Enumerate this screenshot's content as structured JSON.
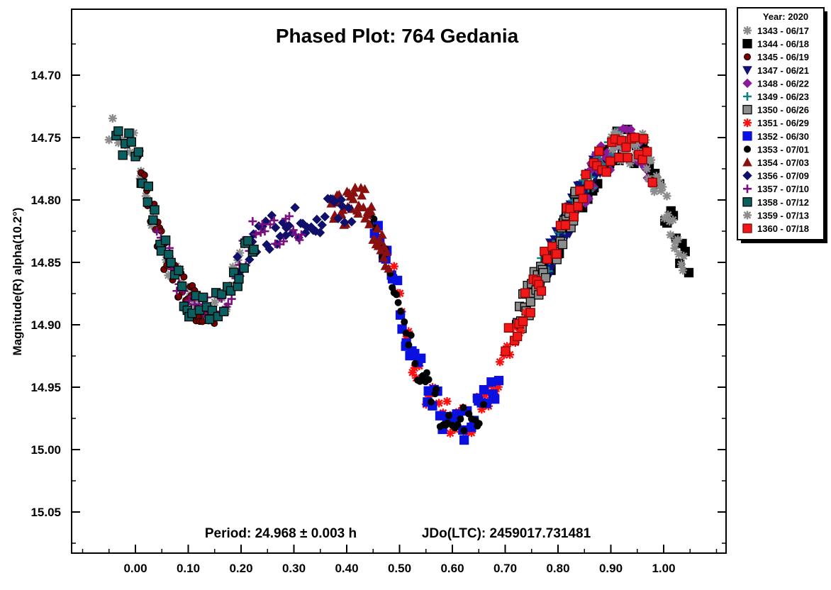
{
  "chart_data": {
    "type": "scatter",
    "title": "Phased Plot: 764 Gedania",
    "subtitle_period": "Period: 24.968 ± 0.003 h",
    "subtitle_epoch": "JDo(LTC): 2459017.731481",
    "xlabel": "",
    "ylabel": "Magnitude(R) alpha(10.2°)",
    "xlim": [
      -0.12,
      1.12
    ],
    "ylim": [
      14.665,
      15.085
    ],
    "y_inverted": true,
    "x_ticks": [
      "0.00",
      "0.10",
      "0.20",
      "0.30",
      "0.40",
      "0.50",
      "0.60",
      "0.70",
      "0.80",
      "0.90",
      "1.00"
    ],
    "y_ticks": [
      "14.70",
      "14.75",
      "14.80",
      "14.85",
      "14.90",
      "14.95",
      "15.00",
      "15.05"
    ],
    "grid": false,
    "legend_position": "right",
    "legend_title": "Year: 2020",
    "lightcurve_model": {
      "phase": [
        0.0,
        0.05,
        0.1,
        0.13,
        0.17,
        0.22,
        0.3,
        0.38,
        0.43,
        0.48,
        0.52,
        0.56,
        0.6,
        0.63,
        0.67,
        0.72,
        0.78,
        0.84,
        0.88,
        0.92,
        0.96,
        1.0,
        1.04,
        1.06
      ],
      "mag": [
        14.76,
        14.84,
        14.88,
        14.89,
        14.88,
        14.83,
        14.82,
        14.81,
        14.8,
        14.85,
        14.92,
        14.96,
        14.98,
        14.98,
        14.96,
        14.9,
        14.85,
        14.8,
        14.77,
        14.755,
        14.76,
        14.8,
        14.85,
        14.87
      ]
    },
    "series": [
      {
        "name": "1343 - 06/17",
        "marker": "asterisk",
        "color": "#8c8c8c",
        "outline": "#8c8c8c",
        "phase_range": [
          -0.05,
          0.2
        ]
      },
      {
        "name": "1344 - 06/18",
        "marker": "square",
        "color": "#000000",
        "outline": "#000000",
        "phase_range": [
          0.78,
          1.05
        ]
      },
      {
        "name": "1345 - 06/19",
        "marker": "circle",
        "color": "#7a0000",
        "outline": "#000000",
        "phase_range": [
          0.0,
          0.15
        ]
      },
      {
        "name": "1347 - 06/21",
        "marker": "triangle-down",
        "color": "#10107a",
        "outline": "#10107a",
        "phase_range": [
          0.78,
          0.88
        ]
      },
      {
        "name": "1348 - 06/22",
        "marker": "diamond",
        "color": "#8a1a9a",
        "outline": "#8a1a9a",
        "phase_range": [
          0.85,
          0.97
        ]
      },
      {
        "name": "1349 - 06/23",
        "marker": "plus",
        "color": "#108080",
        "outline": "#108080",
        "phase_range": [
          0.74,
          0.92
        ]
      },
      {
        "name": "1350 - 06/26",
        "marker": "square",
        "color": "#8c8c8c",
        "outline": "#000000",
        "phase_range": [
          0.72,
          0.84
        ]
      },
      {
        "name": "1351 - 06/29",
        "marker": "asterisk",
        "color": "#ff1010",
        "outline": "#ff1010",
        "phase_range": [
          0.48,
          0.74
        ]
      },
      {
        "name": "1352 - 06/30",
        "marker": "square",
        "color": "#0a10e0",
        "outline": "#0a10e0",
        "phase_range": [
          0.45,
          0.69
        ]
      },
      {
        "name": "1353 - 07/01",
        "marker": "circle",
        "color": "#000000",
        "outline": "#000000",
        "phase_range": [
          0.44,
          0.66
        ]
      },
      {
        "name": "1354 - 07/03",
        "marker": "triangle-up",
        "color": "#8a1010",
        "outline": "#8a1010",
        "phase_range": [
          0.37,
          0.48
        ]
      },
      {
        "name": "1356 - 07/09",
        "marker": "diamond",
        "color": "#10106a",
        "outline": "#10106a",
        "phase_range": [
          0.19,
          0.41
        ]
      },
      {
        "name": "1357 - 07/10",
        "marker": "plus",
        "color": "#7a1080",
        "outline": "#7a1080",
        "phase_range": [
          0.03,
          0.32
        ]
      },
      {
        "name": "1358 - 07/12",
        "marker": "square",
        "color": "#0a6060",
        "outline": "#000000",
        "phase_range": [
          -0.04,
          0.23
        ]
      },
      {
        "name": "1359 - 07/13",
        "marker": "asterisk",
        "color": "#8c8c8c",
        "outline": "#8c8c8c",
        "phase_range": [
          0.9,
          1.04
        ]
      },
      {
        "name": "1360 - 07/18",
        "marker": "square",
        "color": "#f01818",
        "outline": "#900000",
        "phase_range": [
          0.7,
          0.98
        ]
      }
    ]
  }
}
